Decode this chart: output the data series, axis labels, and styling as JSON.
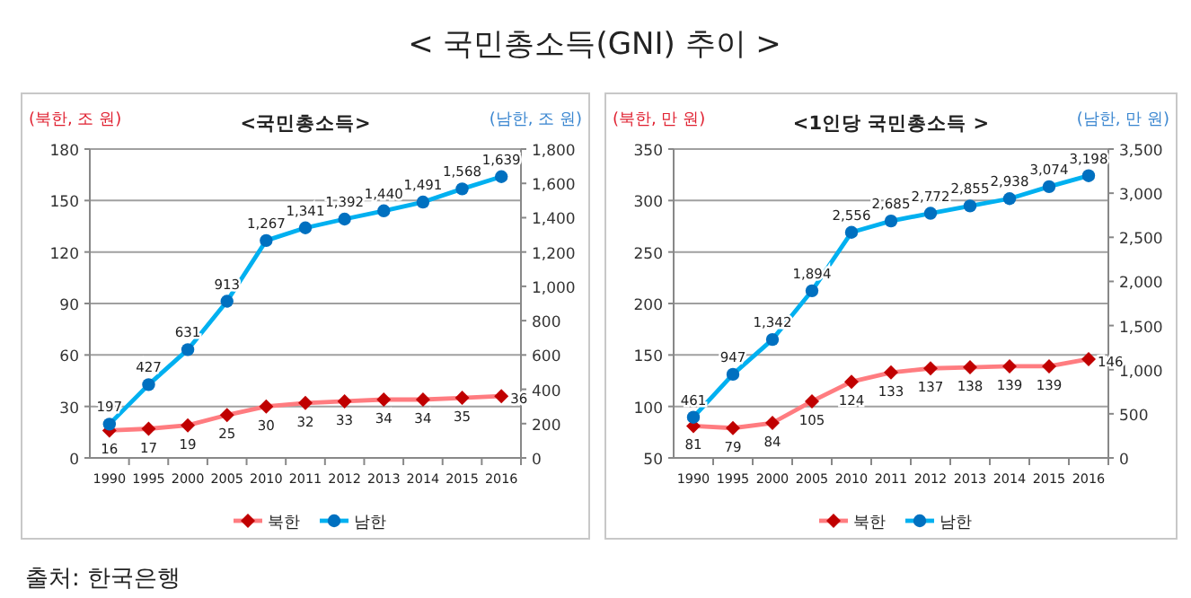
{
  "chart_data": [
    {
      "type": "other",
      "title": "< 국민총소득(GNI) 추이 >",
      "annotations": [
        "출처: 한국은행"
      ]
    },
    {
      "type": "line",
      "title": "<국민총소득>",
      "ylabel": "(북한, 조 원)",
      "y2label": "(남한, 조 원)",
      "categories": [
        "1990",
        "1995",
        "2000",
        "2005",
        "2010",
        "2011",
        "2012",
        "2013",
        "2014",
        "2015",
        "2016"
      ],
      "series": [
        {
          "name": "북한",
          "color": "#ff7c80",
          "marker": "diamond",
          "values": [
            16,
            17,
            19,
            25,
            30,
            32,
            33,
            34,
            34,
            35,
            36
          ]
        },
        {
          "name": "남한",
          "color": "#00b0f0",
          "marker": "circle",
          "axis": "y2",
          "values": [
            197,
            427,
            631,
            913,
            1267,
            1341,
            1392,
            1440,
            1491,
            1568,
            1639
          ],
          "value_labels": [
            "197",
            "427",
            "631",
            "913",
            "1,267",
            "1,341",
            "1,392",
            "1,440",
            "1,491",
            "1,568",
            "1,639"
          ]
        }
      ],
      "ylim": [
        0,
        180
      ],
      "yticks": [
        0,
        30,
        60,
        90,
        120,
        150,
        180
      ],
      "y2lim": [
        0,
        1800
      ],
      "y2ticks": [
        0,
        200,
        400,
        600,
        800,
        {
          "value": 1000,
          "label": "1,000"
        },
        {
          "value": 1200,
          "label": "1,200"
        },
        {
          "value": 1400,
          "label": "1,400"
        },
        {
          "value": 1600,
          "label": "1,600"
        },
        {
          "value": 1800,
          "label": "1,800"
        }
      ],
      "grid": "y",
      "legend": "bottom",
      "data_labels": true
    },
    {
      "type": "line",
      "title": "<1인당 국민총소득 >",
      "ylabel": "(북한, 만 원)",
      "y2label": "(남한, 만 원)",
      "categories": [
        "1990",
        "1995",
        "2000",
        "2005",
        "2010",
        "2011",
        "2012",
        "2013",
        "2014",
        "2015",
        "2016"
      ],
      "series": [
        {
          "name": "북한",
          "color": "#ff7c80",
          "marker": "diamond",
          "values": [
            81,
            79,
            84,
            105,
            124,
            133,
            137,
            138,
            139,
            139,
            146
          ]
        },
        {
          "name": "남한",
          "color": "#00b0f0",
          "marker": "circle",
          "axis": "y2",
          "values": [
            461,
            947,
            1342,
            1894,
            2556,
            2685,
            2772,
            2855,
            2938,
            3074,
            3198
          ],
          "value_labels": [
            "461",
            "947",
            "1,342",
            "1,894",
            "2,556",
            "2,685",
            "2,772",
            "2,855",
            "2,938",
            "3,074",
            "3,198"
          ]
        }
      ],
      "ylim": [
        50,
        350
      ],
      "yticks": [
        50,
        100,
        150,
        200,
        250,
        300,
        350
      ],
      "y2lim": [
        0,
        3500
      ],
      "y2ticks": [
        0,
        500,
        {
          "value": 1000,
          "label": "1,000"
        },
        {
          "value": 1500,
          "label": "1,500"
        },
        {
          "value": 2000,
          "label": "2,000"
        },
        {
          "value": 2500,
          "label": "2,500"
        },
        {
          "value": 3000,
          "label": "3,000"
        },
        {
          "value": 3500,
          "label": "3,500"
        }
      ],
      "grid": "y",
      "legend": "bottom",
      "data_labels": true
    }
  ]
}
